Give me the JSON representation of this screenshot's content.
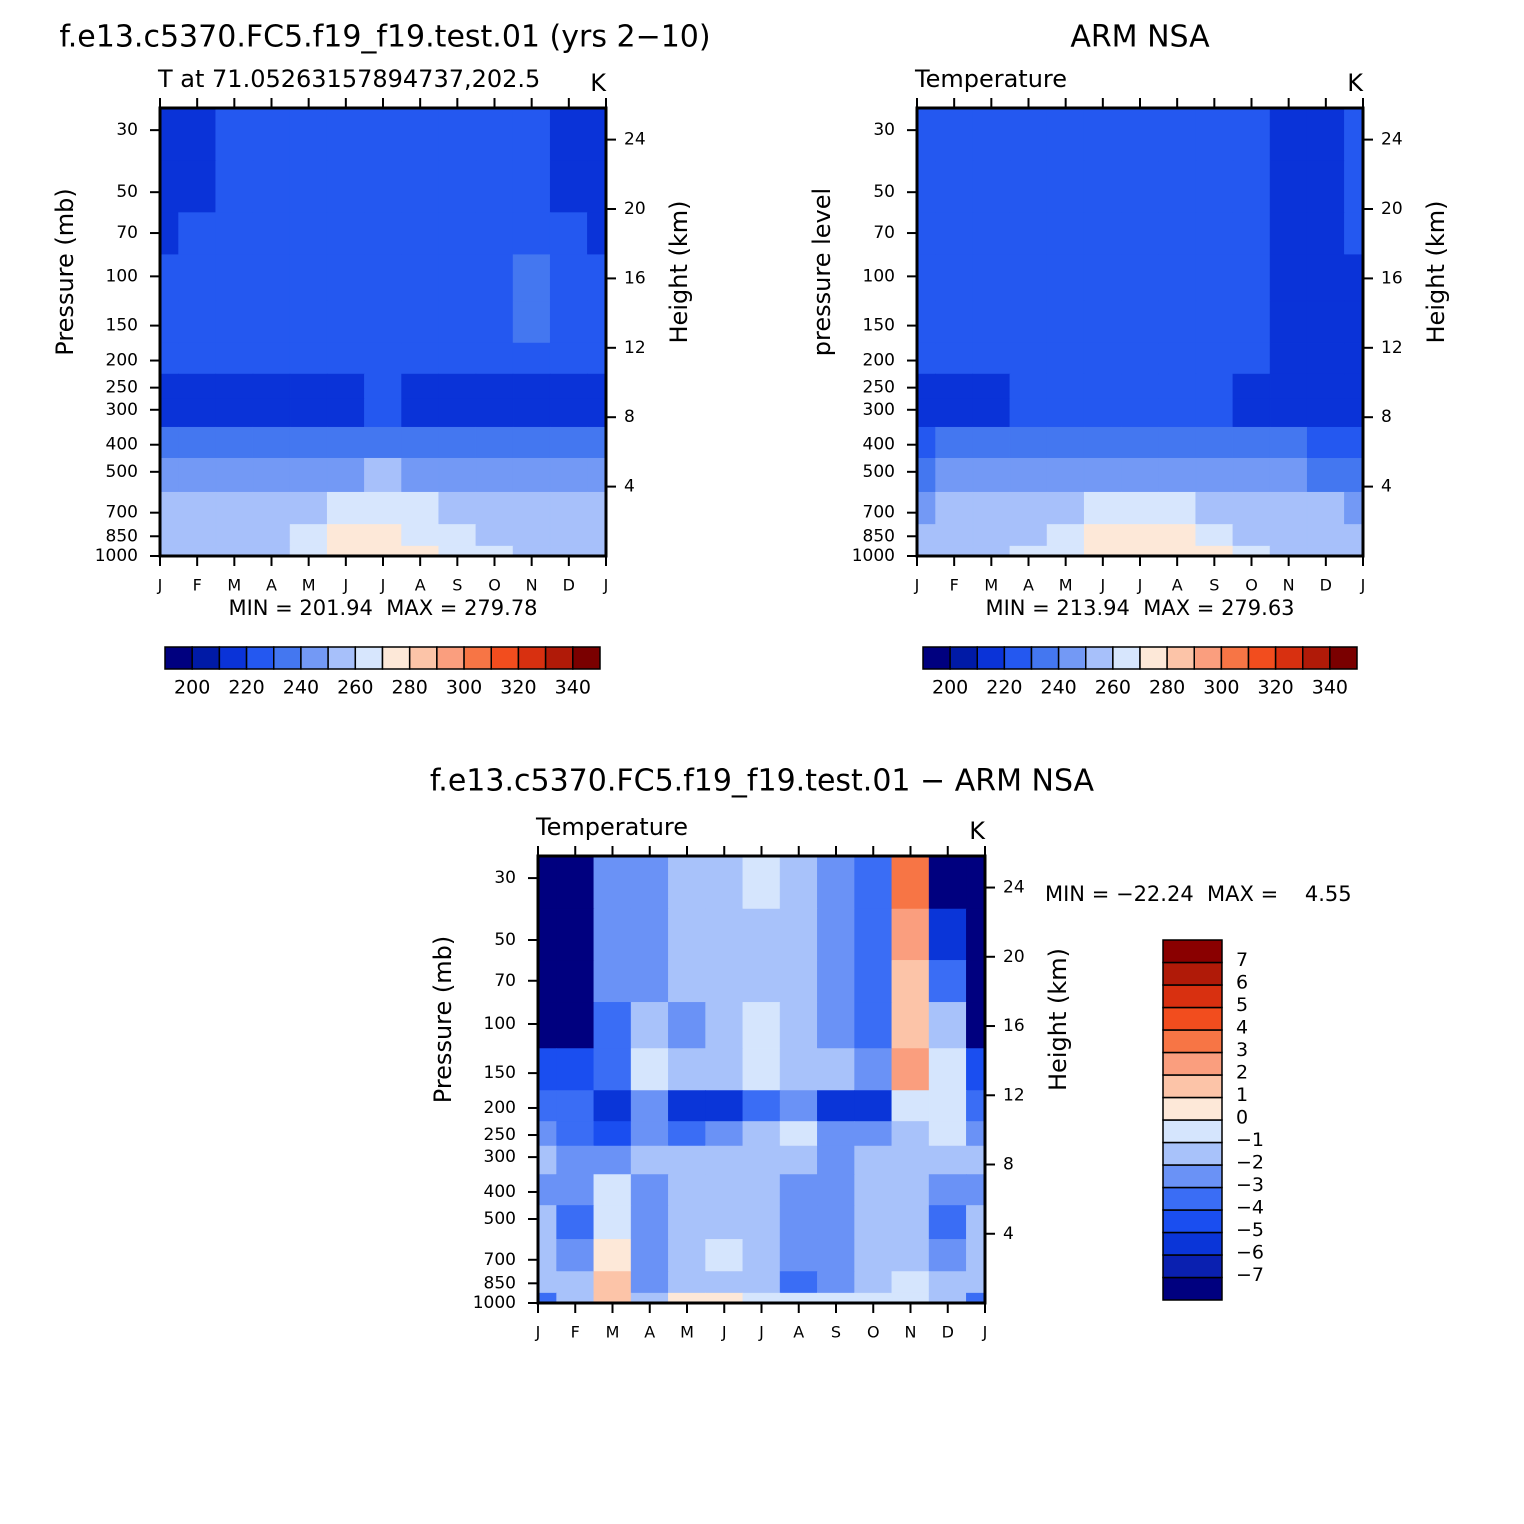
{
  "chart_data": [
    {
      "type": "contour",
      "title": "f.e13.c5370.FC5.f19_f19.test.01 (yrs 2−10)",
      "left_title": "T at 71.05263157894737,202.5",
      "right_title": "K",
      "ylabel": "Pressure (mb)",
      "y2label": "Height (km)",
      "log_scale": true,
      "categories": [
        "J",
        "F",
        "M",
        "A",
        "M",
        "J",
        "J",
        "A",
        "S",
        "O",
        "N",
        "D",
        "J"
      ],
      "y": [
        30,
        50,
        70,
        100,
        150,
        200,
        250,
        300,
        400,
        500,
        700,
        850,
        1000
      ],
      "ylim": [
        1000,
        25
      ],
      "yticks": [
        30,
        50,
        70,
        100,
        150,
        200,
        250,
        300,
        400,
        500,
        700,
        850,
        1000
      ],
      "y2ticks": [
        4,
        8,
        12,
        16,
        20,
        24
      ],
      "z": [
        [
          212,
          218,
          225,
          226,
          226,
          226,
          226,
          226,
          224,
          222,
          222,
          216,
          212
        ],
        [
          214,
          219,
          224,
          226,
          226,
          226,
          226,
          226,
          224,
          222,
          222,
          217,
          214
        ],
        [
          218,
          221,
          224,
          226,
          226,
          226,
          226,
          226,
          224,
          223,
          222,
          220,
          218
        ],
        [
          221,
          222,
          224,
          228,
          227,
          227,
          227,
          227,
          226,
          225,
          232,
          222,
          221
        ],
        [
          222,
          222,
          223,
          224,
          228,
          228,
          228,
          228,
          226,
          225,
          232,
          222,
          222
        ],
        [
          222,
          222,
          222,
          222,
          222,
          225,
          226,
          225,
          223,
          222,
          222,
          222,
          222
        ],
        [
          218,
          218,
          218,
          218,
          218,
          219,
          224,
          219,
          218,
          218,
          218,
          218,
          218
        ],
        [
          216,
          216,
          216,
          216,
          217,
          218,
          221,
          218,
          217,
          216,
          216,
          216,
          216
        ],
        [
          232,
          232,
          233,
          234,
          235,
          237,
          238,
          237,
          235,
          233,
          232,
          232,
          232
        ],
        [
          242,
          242,
          243,
          245,
          247,
          249,
          250,
          249,
          247,
          244,
          243,
          242,
          242
        ],
        [
          252,
          252,
          253,
          255,
          258,
          260,
          262,
          260,
          257,
          254,
          253,
          252,
          252
        ],
        [
          256,
          256,
          257,
          259,
          264,
          270,
          271,
          269,
          264,
          258,
          256,
          256,
          256
        ],
        [
          252,
          253,
          255,
          258,
          268,
          274,
          275,
          273,
          268,
          262,
          258,
          256,
          252
        ]
      ],
      "levels": [
        200,
        210,
        220,
        230,
        240,
        250,
        260,
        270,
        280,
        290,
        300,
        310,
        320,
        330,
        340
      ],
      "colors": [
        "#00007f",
        "#001aa6",
        "#0a33d8",
        "#2458f0",
        "#4477f0",
        "#7399f5",
        "#a7c0fa",
        "#d7e6fd",
        "#fde8d8",
        "#fcc4a8",
        "#fa9e7e",
        "#f77545",
        "#f24d1e",
        "#d83010",
        "#b01a08",
        "#7a0000"
      ],
      "stats": "MIN = 201.94  MAX = 279.78",
      "colorbar": "horizontal"
    },
    {
      "type": "contour",
      "title": "ARM NSA",
      "left_title": "Temperature",
      "right_title": "K",
      "ylabel": "pressure level",
      "y2label": "Height (km)",
      "log_scale": true,
      "categories": [
        "J",
        "F",
        "M",
        "A",
        "M",
        "J",
        "J",
        "A",
        "S",
        "O",
        "N",
        "D",
        "J"
      ],
      "y": [
        30,
        50,
        70,
        100,
        150,
        200,
        250,
        300,
        400,
        500,
        700,
        850,
        1000
      ],
      "ylim": [
        1000,
        25
      ],
      "yticks": [
        30,
        50,
        70,
        100,
        150,
        200,
        250,
        300,
        400,
        500,
        700,
        850,
        1000
      ],
      "y2ticks": [
        4,
        8,
        12,
        16,
        20,
        24
      ],
      "z": [
        [
          225,
          225,
          226,
          226,
          226,
          226,
          226,
          226,
          226,
          222,
          218,
          218,
          225
        ],
        [
          225,
          225,
          226,
          226,
          226,
          226,
          226,
          226,
          225,
          222,
          218,
          218,
          222
        ],
        [
          225,
          225,
          226,
          226,
          226,
          226,
          226,
          226,
          225,
          222,
          218,
          218,
          222
        ],
        [
          225,
          225,
          226,
          226,
          226,
          226,
          226,
          226,
          225,
          222,
          218,
          218,
          218
        ],
        [
          224,
          224,
          225,
          226,
          226,
          226,
          226,
          226,
          225,
          221,
          218,
          218,
          218
        ],
        [
          222,
          222,
          224,
          225,
          226,
          226,
          226,
          226,
          224,
          220,
          218,
          218,
          218
        ],
        [
          217,
          217,
          217,
          222,
          225,
          226,
          226,
          225,
          221,
          218,
          217,
          217,
          217
        ],
        [
          216,
          216,
          216,
          222,
          224,
          225,
          226,
          225,
          222,
          218,
          216,
          216,
          216
        ],
        [
          228,
          230,
          231,
          233,
          235,
          237,
          238,
          237,
          234,
          232,
          230,
          229,
          228
        ],
        [
          238,
          240,
          241,
          243,
          246,
          248,
          249,
          248,
          245,
          242,
          240,
          239,
          238
        ],
        [
          248,
          250,
          251,
          254,
          258,
          262,
          263,
          261,
          256,
          253,
          251,
          250,
          248
        ],
        [
          252,
          254,
          255,
          258,
          266,
          272,
          273,
          272,
          265,
          258,
          255,
          254,
          252
        ],
        [
          252,
          254,
          256,
          262,
          268,
          275,
          276,
          274,
          270,
          262,
          256,
          254,
          252
        ]
      ],
      "levels": [
        200,
        210,
        220,
        230,
        240,
        250,
        260,
        270,
        280,
        290,
        300,
        310,
        320,
        330,
        340
      ],
      "colors": [
        "#00007f",
        "#001aa6",
        "#0a33d8",
        "#2458f0",
        "#4477f0",
        "#7399f5",
        "#a7c0fa",
        "#d7e6fd",
        "#fde8d8",
        "#fcc4a8",
        "#fa9e7e",
        "#f77545",
        "#f24d1e",
        "#d83010",
        "#b01a08",
        "#7a0000"
      ],
      "stats": "MIN = 213.94  MAX = 279.63",
      "colorbar": "horizontal"
    },
    {
      "type": "contour",
      "title": "f.e13.c5370.FC5.f19_f19.test.01 − ARM NSA",
      "left_title": "Temperature",
      "right_title": "K",
      "ylabel": "Pressure (mb)",
      "y2label": "Height (km)",
      "log_scale": true,
      "categories": [
        "J",
        "F",
        "M",
        "A",
        "M",
        "J",
        "J",
        "A",
        "S",
        "O",
        "N",
        "D",
        "J"
      ],
      "y": [
        30,
        50,
        70,
        100,
        150,
        200,
        250,
        300,
        400,
        500,
        700,
        850,
        1000
      ],
      "ylim": [
        1000,
        25
      ],
      "yticks": [
        30,
        50,
        70,
        100,
        150,
        200,
        250,
        300,
        400,
        500,
        700,
        850,
        1000
      ],
      "y2ticks": [
        4,
        8,
        12,
        16,
        20,
        24
      ],
      "z": [
        [
          -12,
          -10,
          -3,
          -2.5,
          -1.5,
          -1.5,
          -1,
          -1.5,
          -2.5,
          -4,
          3,
          -8,
          -12
        ],
        [
          -12,
          -10,
          -3,
          -2.5,
          -2,
          -1.5,
          -1.5,
          -2,
          -2.5,
          -4,
          2,
          -6,
          -12
        ],
        [
          -10,
          -9,
          -3,
          -2.5,
          -2,
          -1.5,
          -1.2,
          -2,
          -2.5,
          -4,
          1.5,
          -4,
          -10
        ],
        [
          -8,
          -8,
          -3.5,
          -2,
          -2.5,
          -1.5,
          -0.5,
          -1.5,
          -2.5,
          -3.5,
          1,
          -2,
          -8
        ],
        [
          -5,
          -5,
          -4,
          -0.5,
          -2,
          -2,
          -1,
          -1.5,
          -2,
          -3,
          2.5,
          -1,
          -5
        ],
        [
          -4,
          -4,
          -6,
          -3,
          -6,
          -5.5,
          -4,
          -3,
          -5.5,
          -6,
          -1,
          -1,
          -4
        ],
        [
          -3,
          -3.5,
          -5,
          -3,
          -3.5,
          -3,
          -2,
          -1,
          -3,
          -3,
          -1.5,
          -1,
          -3
        ],
        [
          -2,
          -3,
          -2.5,
          -2,
          -2,
          -1.5,
          -1.5,
          -2,
          -2.5,
          -1.5,
          -1.5,
          -1.5,
          -2
        ],
        [
          -2.5,
          -3,
          -1,
          -2.5,
          -1.5,
          -1.5,
          -2,
          -3,
          -2.5,
          -1.5,
          -2,
          -3,
          -2.5
        ],
        [
          -2,
          -4,
          -1,
          -2.5,
          -2,
          -1.5,
          -2,
          -3,
          -3,
          -1.5,
          -1.5,
          -4,
          -2
        ],
        [
          -2,
          -2.5,
          0.5,
          -2.5,
          -1.5,
          -1,
          -2,
          -3,
          -3,
          -1.5,
          -1.5,
          -2.5,
          -2
        ],
        [
          -2,
          -2,
          1.5,
          -2.5,
          -1.5,
          -1.5,
          -2,
          -4,
          -3,
          -1.5,
          -0.5,
          -2,
          -2
        ],
        [
          -4,
          -2,
          1,
          -2,
          0.5,
          0.5,
          -1,
          -1,
          -1,
          -1,
          -1,
          -2,
          -4
        ]
      ],
      "levels": [
        {
          "value": -7,
          "label": "−7"
        },
        {
          "value": -6,
          "label": "−6"
        },
        {
          "value": -5,
          "label": "−5"
        },
        {
          "value": -4,
          "label": "−4"
        },
        {
          "value": -3,
          "label": "−3"
        },
        {
          "value": -2,
          "label": "−2"
        },
        {
          "value": -1,
          "label": "−1"
        },
        0,
        1,
        2,
        3,
        4,
        5,
        6,
        7
      ],
      "colors": [
        "#00007f",
        "#0a20b0",
        "#0a35d8",
        "#1a4ef0",
        "#3a6df5",
        "#6a92f6",
        "#a8c2fa",
        "#d5e5fd",
        "#fde8d8",
        "#fcc4a8",
        "#fa9e7e",
        "#f77545",
        "#f24d1e",
        "#d83010",
        "#b01a08",
        "#8a0000"
      ],
      "stats": "MIN = −22.24  MAX =    4.55",
      "colorbar": "vertical"
    }
  ]
}
